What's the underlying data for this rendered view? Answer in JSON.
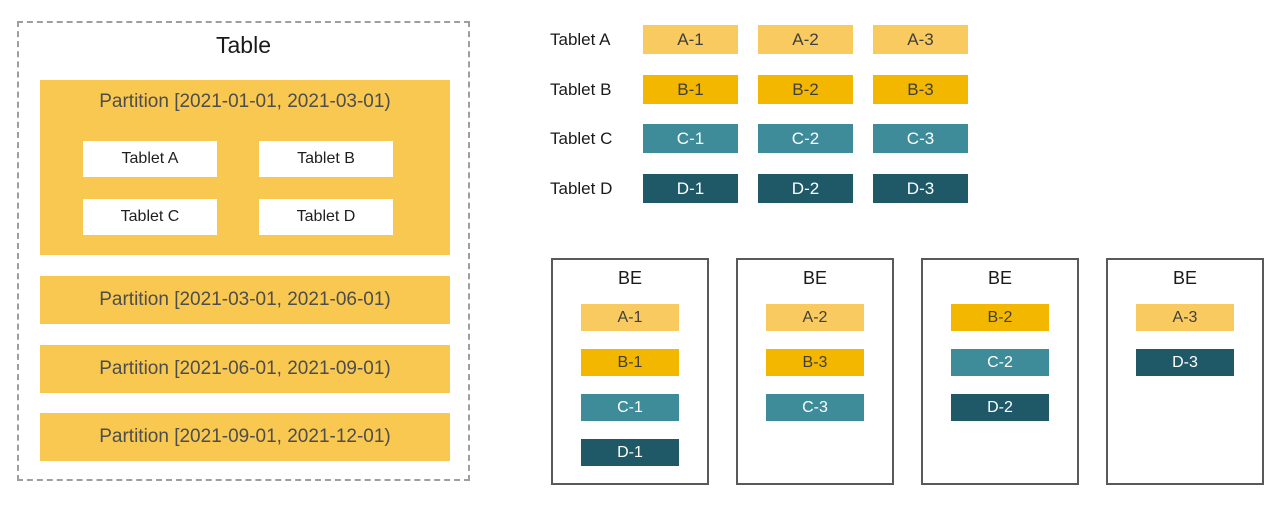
{
  "diagram": {
    "table": {
      "title": "Table",
      "partitions": [
        {
          "label": "Partition [2021-01-01, 2021-03-01)",
          "tablets": [
            "Tablet A",
            "Tablet B",
            "Tablet C",
            "Tablet D"
          ]
        },
        {
          "label": "Partition [2021-03-01, 2021-06-01)"
        },
        {
          "label": "Partition [2021-06-01, 2021-09-01)"
        },
        {
          "label": "Partition [2021-09-01, 2021-12-01)"
        }
      ]
    },
    "tablet_rows": [
      {
        "label": "Tablet A",
        "replicas": [
          "A-1",
          "A-2",
          "A-3"
        ]
      },
      {
        "label": "Tablet B",
        "replicas": [
          "B-1",
          "B-2",
          "B-3"
        ]
      },
      {
        "label": "Tablet C",
        "replicas": [
          "C-1",
          "C-2",
          "C-3"
        ]
      },
      {
        "label": "Tablet D",
        "replicas": [
          "D-1",
          "D-2",
          "D-3"
        ]
      }
    ],
    "backends": [
      {
        "label": "BE",
        "chips": [
          "A-1",
          "B-1",
          "C-1",
          "D-1"
        ]
      },
      {
        "label": "BE",
        "chips": [
          "A-2",
          "B-3",
          "C-3"
        ]
      },
      {
        "label": "BE",
        "chips": [
          "B-2",
          "C-2",
          "D-2"
        ]
      },
      {
        "label": "BE",
        "chips": [
          "A-3",
          "D-3"
        ]
      }
    ],
    "colors": {
      "partition_fill": "#F8C851",
      "tablet_a_fill": "#F9CA5F",
      "tablet_b_fill": "#F3B700",
      "tablet_c_fill": "#3E8C99",
      "tablet_d_fill": "#1F5968",
      "chip_text_dark": "#3F3F3F",
      "chip_text_light": "#FFFFFF",
      "dashed_border": "#9E9E9E",
      "be_border": "#595959"
    }
  }
}
